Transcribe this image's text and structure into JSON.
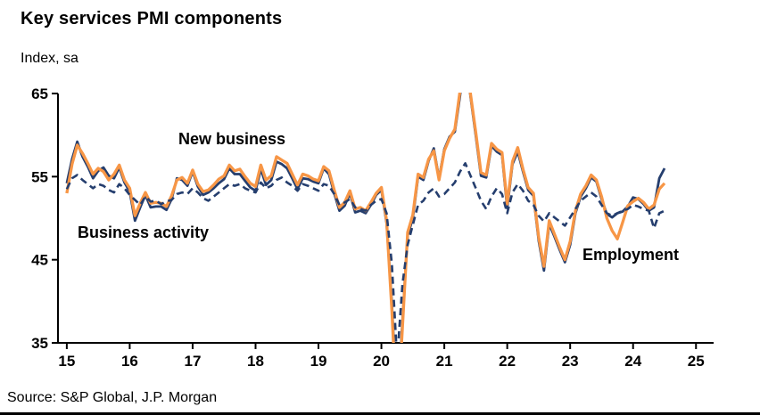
{
  "title": "Key services PMI components",
  "subtitle": "Index, sa",
  "source": "Source: S&P Global, J.P. Morgan",
  "chart_data": {
    "type": "line",
    "title": "Key services PMI components",
    "ylabel": "Index, sa",
    "x_start": 15.0,
    "x_step": 0.0833333,
    "xlim": [
      14.86,
      25.28
    ],
    "ylim": [
      35,
      65
    ],
    "x_ticks": [
      15,
      16,
      17,
      18,
      19,
      20,
      21,
      22,
      23,
      24,
      25
    ],
    "y_ticks": [
      35,
      45,
      55,
      65
    ],
    "grid": false,
    "legend_position": "inline-annotations",
    "colors": {
      "navy": "#253e6e",
      "orange": "#f79646"
    },
    "series": [
      {
        "id": "business-activity",
        "name": "Business activity",
        "color": "#253e6e",
        "dash": null,
        "width": 2.8,
        "values": [
          54.2,
          57.1,
          59.2,
          57.4,
          56.2,
          54.8,
          55.7,
          56.1,
          55.1,
          54.8,
          56.1,
          54.3,
          53.2,
          49.7,
          51.3,
          52.8,
          51.3,
          51.4,
          51.4,
          51.0,
          52.3,
          54.8,
          54.6,
          53.9,
          55.6,
          53.8,
          52.8,
          53.1,
          53.6,
          54.2,
          54.7,
          56.0,
          55.3,
          55.3,
          54.5,
          53.7,
          53.3,
          55.9,
          54.0,
          54.6,
          56.8,
          56.5,
          56.0,
          54.8,
          53.5,
          54.8,
          54.7,
          54.4,
          54.2,
          56.0,
          55.3,
          53.0,
          50.9,
          51.5,
          53.0,
          50.7,
          50.9,
          50.6,
          51.6,
          52.8,
          53.4,
          49.4,
          39.8,
          26.7,
          37.5,
          47.9,
          50.0,
          55.0,
          54.6,
          56.9,
          58.4,
          54.8,
          58.3,
          59.8,
          60.4,
          64.7,
          70.4,
          64.6,
          59.9,
          55.1,
          54.9,
          58.7,
          58.0,
          57.6,
          51.2,
          56.5,
          58.0,
          55.6,
          53.4,
          52.7,
          47.3,
          43.7,
          49.3,
          47.8,
          46.2,
          44.7,
          46.8,
          50.6,
          52.6,
          53.6,
          54.9,
          54.4,
          52.3,
          50.5,
          50.1,
          50.6,
          50.8,
          51.4,
          52.5,
          52.3,
          51.7,
          50.9,
          51.3,
          54.8,
          56.0
        ]
      },
      {
        "id": "new-business",
        "name": "New business",
        "color": "#f79646",
        "dash": null,
        "width": 3.3,
        "values": [
          53.0,
          56.5,
          58.8,
          57.8,
          56.6,
          55.3,
          56.0,
          55.6,
          54.6,
          55.3,
          56.4,
          54.6,
          53.6,
          50.3,
          51.8,
          53.1,
          51.8,
          51.9,
          51.8,
          51.4,
          52.7,
          54.6,
          54.9,
          54.2,
          55.8,
          54.1,
          53.2,
          53.4,
          54.0,
          54.7,
          55.1,
          56.4,
          55.7,
          55.9,
          55.0,
          54.2,
          53.8,
          56.4,
          54.6,
          55.1,
          57.4,
          57.0,
          56.6,
          55.3,
          54.0,
          55.3,
          55.1,
          54.7,
          54.5,
          56.2,
          55.7,
          53.4,
          51.3,
          51.9,
          53.3,
          51.1,
          51.3,
          50.9,
          51.9,
          53.0,
          53.7,
          49.7,
          38.9,
          25.8,
          36.7,
          48.3,
          50.4,
          55.3,
          54.9,
          57.1,
          58.1,
          54.6,
          58.1,
          59.6,
          60.7,
          65.3,
          71.0,
          64.9,
          60.3,
          55.5,
          55.2,
          59.0,
          58.3,
          57.9,
          51.7,
          56.8,
          58.5,
          55.9,
          53.7,
          53.0,
          47.7,
          44.2,
          49.7,
          48.1,
          46.5,
          45.0,
          47.2,
          50.9,
          52.9,
          53.9,
          55.2,
          54.6,
          52.6,
          50.0,
          48.5,
          47.5,
          49.5,
          51.5,
          52.0,
          52.4,
          51.9,
          51.1,
          51.6,
          53.5,
          54.2
        ]
      },
      {
        "id": "employment",
        "name": "Employment",
        "color": "#253e6e",
        "dash": "8 5",
        "width": 2.6,
        "values": [
          53.5,
          54.8,
          55.2,
          54.6,
          54.1,
          53.6,
          54.1,
          53.9,
          53.4,
          53.1,
          54.1,
          53.6,
          52.8,
          52.2,
          51.6,
          52.6,
          52.0,
          52.1,
          51.7,
          52.0,
          52.2,
          52.9,
          53.1,
          52.9,
          53.6,
          53.1,
          52.4,
          52.1,
          52.6,
          53.1,
          53.6,
          54.1,
          53.9,
          54.1,
          53.6,
          53.3,
          53.1,
          54.3,
          53.6,
          53.9,
          54.6,
          54.9,
          54.3,
          53.9,
          53.3,
          54.1,
          53.9,
          53.6,
          53.3,
          54.1,
          53.9,
          52.9,
          51.6,
          51.9,
          52.3,
          51.3,
          51.1,
          50.9,
          51.6,
          52.1,
          52.3,
          50.6,
          44.5,
          33.0,
          42.0,
          46.8,
          49.2,
          51.6,
          52.1,
          53.1,
          53.6,
          52.6,
          52.9,
          53.6,
          54.3,
          55.6,
          56.6,
          55.1,
          53.6,
          52.1,
          51.1,
          52.6,
          53.6,
          52.9,
          50.6,
          53.1,
          54.1,
          53.3,
          52.1,
          51.6,
          50.3,
          49.6,
          50.6,
          50.1,
          49.6,
          49.1,
          50.1,
          51.1,
          52.1,
          52.6,
          53.1,
          52.6,
          51.6,
          50.6,
          50.3,
          50.6,
          50.9,
          51.1,
          51.6,
          51.4,
          51.1,
          50.9,
          48.8,
          50.6,
          50.9
        ]
      }
    ],
    "annotations": [
      {
        "label": "New business",
        "series": "new-business"
      },
      {
        "label": "Business activity",
        "series": "business-activity"
      },
      {
        "label": "Employment",
        "series": "employment"
      }
    ]
  }
}
